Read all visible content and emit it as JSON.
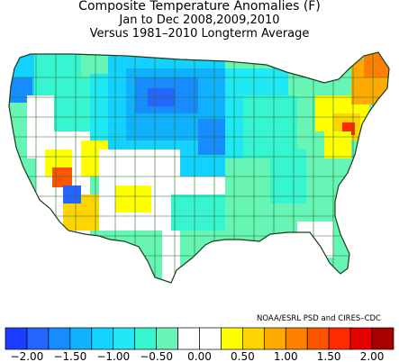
{
  "titles": {
    "line1": "Composite Temperature Anomalies (F)",
    "line2": "Jan to Dec  2008,2009,2010",
    "line3": "Versus 1981–2010 Longterm Average"
  },
  "credit": "NOAA/ESRL PSD and CIRES–CDC",
  "legend": {
    "units": "F",
    "bins": [
      {
        "color": "#1c3dff"
      },
      {
        "color": "#2664ff"
      },
      {
        "color": "#168cff"
      },
      {
        "color": "#10b2ff"
      },
      {
        "color": "#14d2ff"
      },
      {
        "color": "#20e8f4"
      },
      {
        "color": "#38f5d2"
      },
      {
        "color": "#66f5b4"
      },
      {
        "color": "#ffffff"
      },
      {
        "color": "#ffffff"
      },
      {
        "color": "#ffff00"
      },
      {
        "color": "#ffd400"
      },
      {
        "color": "#ffaa00"
      },
      {
        "color": "#ff8000"
      },
      {
        "color": "#ff5500"
      },
      {
        "color": "#ff2a00"
      },
      {
        "color": "#e60000"
      },
      {
        "color": "#a80000"
      }
    ],
    "tick_labels": [
      "−2.00",
      "−1.50",
      "−1.00",
      "−0.50",
      "0.00",
      "0.50",
      "1.00",
      "1.50",
      "2.00"
    ]
  },
  "map": {
    "region": "Contiguous United States",
    "regions": [
      {
        "name": "northwest-coast",
        "anomaly": -1.0
      },
      {
        "name": "northern-plains",
        "anomaly": -1.75
      },
      {
        "name": "central-plains",
        "anomaly": -1.25
      },
      {
        "name": "great-lakes",
        "anomaly": -0.75
      },
      {
        "name": "southwest-desert",
        "anomaly": 0.5
      },
      {
        "name": "southern-california",
        "anomaly": 1.25
      },
      {
        "name": "texas",
        "anomaly": -0.25
      },
      {
        "name": "southeast",
        "anomaly": -0.5
      },
      {
        "name": "northeast",
        "anomaly": 1.0
      },
      {
        "name": "maine",
        "anomaly": 1.5
      }
    ]
  }
}
